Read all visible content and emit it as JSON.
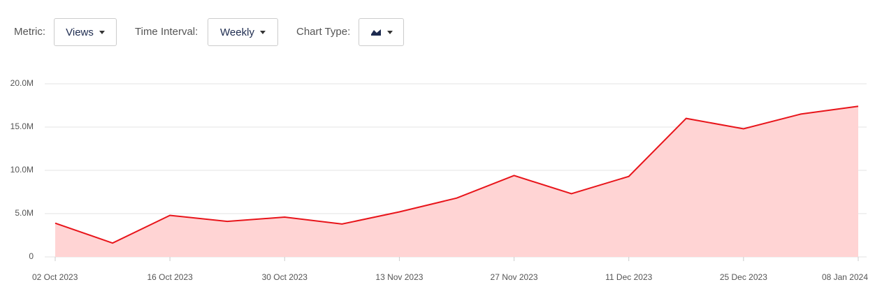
{
  "controls": [
    {
      "label": "Metric:",
      "value": "Views"
    },
    {
      "label": "Time Interval:",
      "value": "Weekly"
    },
    {
      "label": "Chart Type:"
    }
  ],
  "chart_data": {
    "type": "area",
    "categories": [
      "02 Oct 2023",
      null,
      "16 Oct 2023",
      null,
      "30 Oct 2023",
      null,
      "13 Nov 2023",
      null,
      "27 Nov 2023",
      null,
      "11 Dec 2023",
      null,
      "25 Dec 2023",
      null,
      "08 Jan 2024"
    ],
    "series": [
      {
        "name": "Views",
        "color": "#e8141a",
        "fill": "#ffd4d4",
        "values": [
          3900000,
          1600000,
          4800000,
          4100000,
          4600000,
          3800000,
          5200000,
          6800000,
          9400000,
          7300000,
          9300000,
          16000000,
          14800000,
          16500000,
          17400000
        ]
      }
    ],
    "ylim": [
      0,
      20000000
    ],
    "yticks": [
      0,
      {
        "value": 5000000,
        "label": "5.0M"
      },
      {
        "value": 10000000,
        "label": "10.0M"
      },
      {
        "value": 15000000,
        "label": "15.0M"
      },
      {
        "value": 20000000,
        "label": "20.0M"
      }
    ],
    "grid": true
  }
}
